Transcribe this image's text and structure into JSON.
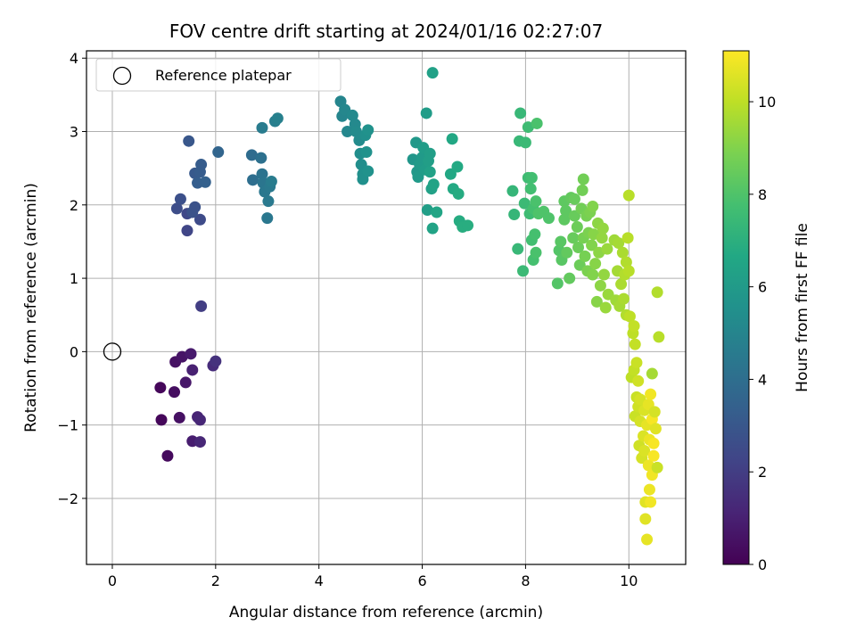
{
  "chart_data": {
    "type": "scatter",
    "title": "FOV centre drift starting at 2024/01/16 02:27:07",
    "xlabel": "Angular distance from reference (arcmin)",
    "ylabel": "Rotation from reference (arcmin)",
    "xlim": [
      -0.5,
      11.1
    ],
    "ylim": [
      -2.9,
      4.1
    ],
    "xticks": [
      0,
      2,
      4,
      6,
      8,
      10
    ],
    "yticks": [
      -2,
      -1,
      0,
      1,
      2,
      3,
      4
    ],
    "grid": true,
    "legend": {
      "placement": "top-left",
      "entries": [
        {
          "label": "Reference platepar",
          "marker": "open-circle"
        }
      ]
    },
    "reference_point": {
      "x": 0,
      "y": 0
    },
    "colorbar": {
      "label": "Hours from first FF file",
      "colormap": "viridis",
      "range": [
        0,
        11.1
      ],
      "ticks": [
        0,
        2,
        4,
        6,
        8,
        10
      ]
    },
    "points": [
      {
        "x": 0.93,
        "y": -0.49,
        "c": 0.2
      },
      {
        "x": 0.95,
        "y": -0.93,
        "c": 0.2
      },
      {
        "x": 1.07,
        "y": -1.42,
        "c": 0.3
      },
      {
        "x": 1.2,
        "y": -0.55,
        "c": 0.4
      },
      {
        "x": 1.22,
        "y": -0.14,
        "c": 0.5
      },
      {
        "x": 1.3,
        "y": -0.9,
        "c": 0.5
      },
      {
        "x": 1.35,
        "y": -0.07,
        "c": 0.6
      },
      {
        "x": 1.42,
        "y": -0.42,
        "c": 0.7
      },
      {
        "x": 1.52,
        "y": -0.03,
        "c": 0.8
      },
      {
        "x": 1.55,
        "y": -1.22,
        "c": 0.9
      },
      {
        "x": 1.55,
        "y": -0.25,
        "c": 1.0
      },
      {
        "x": 1.65,
        "y": -0.89,
        "c": 1.1
      },
      {
        "x": 1.7,
        "y": -0.93,
        "c": 1.2
      },
      {
        "x": 1.7,
        "y": -1.23,
        "c": 1.2
      },
      {
        "x": 1.95,
        "y": -0.19,
        "c": 1.4
      },
      {
        "x": 2.0,
        "y": -0.13,
        "c": 1.6
      },
      {
        "x": 1.72,
        "y": 0.62,
        "c": 2.0
      },
      {
        "x": 1.45,
        "y": 1.65,
        "c": 2.3
      },
      {
        "x": 1.45,
        "y": 1.88,
        "c": 2.4
      },
      {
        "x": 1.7,
        "y": 1.8,
        "c": 2.5
      },
      {
        "x": 1.25,
        "y": 1.95,
        "c": 2.6
      },
      {
        "x": 1.32,
        "y": 2.08,
        "c": 2.7
      },
      {
        "x": 1.55,
        "y": 1.9,
        "c": 2.8
      },
      {
        "x": 1.6,
        "y": 1.97,
        "c": 2.8
      },
      {
        "x": 1.48,
        "y": 2.87,
        "c": 3.0
      },
      {
        "x": 1.6,
        "y": 2.43,
        "c": 3.1
      },
      {
        "x": 1.7,
        "y": 2.45,
        "c": 3.2
      },
      {
        "x": 1.72,
        "y": 2.55,
        "c": 3.2
      },
      {
        "x": 1.65,
        "y": 2.3,
        "c": 3.3
      },
      {
        "x": 1.8,
        "y": 2.31,
        "c": 3.4
      },
      {
        "x": 2.05,
        "y": 2.72,
        "c": 3.6
      },
      {
        "x": 2.7,
        "y": 2.68,
        "c": 3.9
      },
      {
        "x": 2.72,
        "y": 2.34,
        "c": 4.0
      },
      {
        "x": 2.88,
        "y": 2.64,
        "c": 4.1
      },
      {
        "x": 2.9,
        "y": 2.42,
        "c": 4.2
      },
      {
        "x": 2.92,
        "y": 2.3,
        "c": 4.3
      },
      {
        "x": 2.95,
        "y": 2.18,
        "c": 4.4
      },
      {
        "x": 3.0,
        "y": 1.82,
        "c": 4.4
      },
      {
        "x": 3.02,
        "y": 2.05,
        "c": 4.5
      },
      {
        "x": 3.05,
        "y": 2.25,
        "c": 4.5
      },
      {
        "x": 3.08,
        "y": 2.32,
        "c": 4.6
      },
      {
        "x": 2.9,
        "y": 3.05,
        "c": 4.6
      },
      {
        "x": 3.15,
        "y": 3.14,
        "c": 4.7
      },
      {
        "x": 3.2,
        "y": 3.18,
        "c": 4.8
      },
      {
        "x": 4.42,
        "y": 3.41,
        "c": 5.0
      },
      {
        "x": 4.45,
        "y": 3.21,
        "c": 5.0
      },
      {
        "x": 4.5,
        "y": 3.3,
        "c": 5.1
      },
      {
        "x": 4.55,
        "y": 3.0,
        "c": 5.1
      },
      {
        "x": 4.65,
        "y": 3.22,
        "c": 5.2
      },
      {
        "x": 4.7,
        "y": 3.1,
        "c": 5.2
      },
      {
        "x": 4.72,
        "y": 3.0,
        "c": 5.3
      },
      {
        "x": 4.78,
        "y": 2.88,
        "c": 5.3
      },
      {
        "x": 4.8,
        "y": 2.7,
        "c": 5.4
      },
      {
        "x": 4.82,
        "y": 2.55,
        "c": 5.4
      },
      {
        "x": 4.85,
        "y": 2.42,
        "c": 5.5
      },
      {
        "x": 4.85,
        "y": 2.35,
        "c": 5.5
      },
      {
        "x": 4.9,
        "y": 2.95,
        "c": 5.5
      },
      {
        "x": 4.92,
        "y": 2.72,
        "c": 5.6
      },
      {
        "x": 4.95,
        "y": 3.02,
        "c": 5.6
      },
      {
        "x": 4.95,
        "y": 2.46,
        "c": 5.6
      },
      {
        "x": 5.82,
        "y": 2.62,
        "c": 5.8
      },
      {
        "x": 5.88,
        "y": 2.85,
        "c": 5.9
      },
      {
        "x": 5.9,
        "y": 2.45,
        "c": 5.9
      },
      {
        "x": 5.92,
        "y": 2.38,
        "c": 6.0
      },
      {
        "x": 5.95,
        "y": 2.55,
        "c": 6.0
      },
      {
        "x": 6.0,
        "y": 2.65,
        "c": 6.0
      },
      {
        "x": 6.02,
        "y": 2.78,
        "c": 6.1
      },
      {
        "x": 6.05,
        "y": 2.48,
        "c": 6.1
      },
      {
        "x": 6.08,
        "y": 3.25,
        "c": 6.1
      },
      {
        "x": 6.1,
        "y": 1.93,
        "c": 6.2
      },
      {
        "x": 6.12,
        "y": 2.6,
        "c": 6.2
      },
      {
        "x": 6.15,
        "y": 2.7,
        "c": 6.2
      },
      {
        "x": 6.15,
        "y": 2.45,
        "c": 6.3
      },
      {
        "x": 6.18,
        "y": 2.22,
        "c": 6.3
      },
      {
        "x": 6.2,
        "y": 3.8,
        "c": 6.3
      },
      {
        "x": 6.2,
        "y": 1.68,
        "c": 6.4
      },
      {
        "x": 6.22,
        "y": 2.28,
        "c": 6.4
      },
      {
        "x": 6.28,
        "y": 1.9,
        "c": 6.5
      },
      {
        "x": 6.55,
        "y": 2.42,
        "c": 6.6
      },
      {
        "x": 6.58,
        "y": 2.9,
        "c": 6.6
      },
      {
        "x": 6.6,
        "y": 2.22,
        "c": 6.7
      },
      {
        "x": 6.68,
        "y": 2.52,
        "c": 6.7
      },
      {
        "x": 6.7,
        "y": 2.15,
        "c": 6.8
      },
      {
        "x": 6.72,
        "y": 1.78,
        "c": 6.8
      },
      {
        "x": 6.78,
        "y": 1.7,
        "c": 6.9
      },
      {
        "x": 6.88,
        "y": 1.72,
        "c": 6.9
      },
      {
        "x": 7.75,
        "y": 2.19,
        "c": 7.3
      },
      {
        "x": 7.78,
        "y": 1.87,
        "c": 7.3
      },
      {
        "x": 7.85,
        "y": 1.4,
        "c": 7.4
      },
      {
        "x": 7.88,
        "y": 2.87,
        "c": 7.4
      },
      {
        "x": 7.9,
        "y": 3.25,
        "c": 7.4
      },
      {
        "x": 7.95,
        "y": 1.1,
        "c": 7.5
      },
      {
        "x": 7.98,
        "y": 2.02,
        "c": 7.5
      },
      {
        "x": 8.0,
        "y": 2.85,
        "c": 7.5
      },
      {
        "x": 8.05,
        "y": 3.06,
        "c": 7.6
      },
      {
        "x": 8.05,
        "y": 2.37,
        "c": 7.6
      },
      {
        "x": 8.08,
        "y": 1.88,
        "c": 7.6
      },
      {
        "x": 8.1,
        "y": 2.22,
        "c": 7.7
      },
      {
        "x": 8.12,
        "y": 1.52,
        "c": 7.7
      },
      {
        "x": 8.12,
        "y": 2.37,
        "c": 7.7
      },
      {
        "x": 8.15,
        "y": 1.95,
        "c": 7.8
      },
      {
        "x": 8.15,
        "y": 1.25,
        "c": 7.8
      },
      {
        "x": 8.18,
        "y": 1.6,
        "c": 7.8
      },
      {
        "x": 8.2,
        "y": 1.35,
        "c": 7.9
      },
      {
        "x": 8.2,
        "y": 2.05,
        "c": 7.9
      },
      {
        "x": 8.22,
        "y": 3.11,
        "c": 7.9
      },
      {
        "x": 8.25,
        "y": 1.88,
        "c": 8.0
      },
      {
        "x": 8.35,
        "y": 1.91,
        "c": 8.0
      },
      {
        "x": 8.45,
        "y": 1.82,
        "c": 8.0
      },
      {
        "x": 8.62,
        "y": 0.93,
        "c": 8.1
      },
      {
        "x": 8.65,
        "y": 1.38,
        "c": 8.1
      },
      {
        "x": 8.68,
        "y": 1.5,
        "c": 8.2
      },
      {
        "x": 8.7,
        "y": 1.25,
        "c": 8.2
      },
      {
        "x": 8.75,
        "y": 1.8,
        "c": 8.3
      },
      {
        "x": 8.75,
        "y": 2.05,
        "c": 8.3
      },
      {
        "x": 8.78,
        "y": 1.92,
        "c": 8.3
      },
      {
        "x": 8.8,
        "y": 1.35,
        "c": 8.4
      },
      {
        "x": 8.85,
        "y": 1.0,
        "c": 8.4
      },
      {
        "x": 8.88,
        "y": 2.1,
        "c": 8.4
      },
      {
        "x": 8.92,
        "y": 1.55,
        "c": 8.5
      },
      {
        "x": 8.95,
        "y": 1.85,
        "c": 8.5
      },
      {
        "x": 8.95,
        "y": 2.08,
        "c": 8.5
      },
      {
        "x": 9.0,
        "y": 1.7,
        "c": 8.6
      },
      {
        "x": 9.02,
        "y": 1.42,
        "c": 8.6
      },
      {
        "x": 9.05,
        "y": 1.18,
        "c": 8.6
      },
      {
        "x": 9.08,
        "y": 1.95,
        "c": 8.7
      },
      {
        "x": 9.1,
        "y": 2.2,
        "c": 8.7
      },
      {
        "x": 9.12,
        "y": 2.35,
        "c": 8.7
      },
      {
        "x": 9.12,
        "y": 1.55,
        "c": 8.8
      },
      {
        "x": 9.15,
        "y": 1.3,
        "c": 8.8
      },
      {
        "x": 9.18,
        "y": 1.85,
        "c": 8.8
      },
      {
        "x": 9.2,
        "y": 1.1,
        "c": 8.9
      },
      {
        "x": 9.22,
        "y": 1.62,
        "c": 8.9
      },
      {
        "x": 9.25,
        "y": 1.9,
        "c": 8.9
      },
      {
        "x": 9.28,
        "y": 1.45,
        "c": 9.0
      },
      {
        "x": 9.3,
        "y": 1.05,
        "c": 9.0
      },
      {
        "x": 9.3,
        "y": 1.98,
        "c": 9.0
      },
      {
        "x": 9.32,
        "y": 1.6,
        "c": 9.1
      },
      {
        "x": 9.35,
        "y": 1.2,
        "c": 9.1
      },
      {
        "x": 9.38,
        "y": 0.68,
        "c": 9.1
      },
      {
        "x": 9.4,
        "y": 1.75,
        "c": 9.2
      },
      {
        "x": 9.42,
        "y": 1.35,
        "c": 9.2
      },
      {
        "x": 9.45,
        "y": 0.9,
        "c": 9.2
      },
      {
        "x": 9.48,
        "y": 1.55,
        "c": 9.3
      },
      {
        "x": 9.5,
        "y": 1.68,
        "c": 9.3
      },
      {
        "x": 9.52,
        "y": 1.05,
        "c": 9.3
      },
      {
        "x": 9.55,
        "y": 0.6,
        "c": 9.4
      },
      {
        "x": 9.58,
        "y": 1.4,
        "c": 9.4
      },
      {
        "x": 9.6,
        "y": 0.78,
        "c": 9.4
      },
      {
        "x": 9.72,
        "y": 1.52,
        "c": 9.5
      },
      {
        "x": 9.75,
        "y": 0.7,
        "c": 9.5
      },
      {
        "x": 9.78,
        "y": 1.1,
        "c": 9.6
      },
      {
        "x": 9.8,
        "y": 1.48,
        "c": 9.6
      },
      {
        "x": 9.82,
        "y": 0.62,
        "c": 9.6
      },
      {
        "x": 9.85,
        "y": 0.92,
        "c": 9.7
      },
      {
        "x": 9.88,
        "y": 1.35,
        "c": 9.7
      },
      {
        "x": 9.9,
        "y": 0.72,
        "c": 9.7
      },
      {
        "x": 9.92,
        "y": 1.05,
        "c": 9.8
      },
      {
        "x": 9.95,
        "y": 0.5,
        "c": 9.8
      },
      {
        "x": 9.95,
        "y": 1.22,
        "c": 9.8
      },
      {
        "x": 9.98,
        "y": 1.55,
        "c": 9.9
      },
      {
        "x": 10.0,
        "y": 1.1,
        "c": 9.9
      },
      {
        "x": 10.0,
        "y": 2.13,
        "c": 9.9
      },
      {
        "x": 10.02,
        "y": 0.48,
        "c": 10.0
      },
      {
        "x": 10.05,
        "y": -0.35,
        "c": 10.0
      },
      {
        "x": 10.08,
        "y": 0.25,
        "c": 10.0
      },
      {
        "x": 10.1,
        "y": 0.35,
        "c": 10.1
      },
      {
        "x": 10.1,
        "y": -0.25,
        "c": 10.1
      },
      {
        "x": 10.12,
        "y": 0.1,
        "c": 10.1
      },
      {
        "x": 10.12,
        "y": -0.88,
        "c": 10.2
      },
      {
        "x": 10.15,
        "y": -0.15,
        "c": 10.2
      },
      {
        "x": 10.15,
        "y": -0.62,
        "c": 10.2
      },
      {
        "x": 10.18,
        "y": -0.4,
        "c": 10.3
      },
      {
        "x": 10.18,
        "y": -0.75,
        "c": 10.3
      },
      {
        "x": 10.2,
        "y": -1.28,
        "c": 10.3
      },
      {
        "x": 10.22,
        "y": -0.95,
        "c": 10.4
      },
      {
        "x": 10.22,
        "y": -0.65,
        "c": 10.4
      },
      {
        "x": 10.25,
        "y": -1.45,
        "c": 10.4
      },
      {
        "x": 10.28,
        "y": -1.15,
        "c": 10.5
      },
      {
        "x": 10.3,
        "y": -0.8,
        "c": 10.5
      },
      {
        "x": 10.3,
        "y": -1.35,
        "c": 10.5
      },
      {
        "x": 10.32,
        "y": -2.05,
        "c": 10.6
      },
      {
        "x": 10.32,
        "y": -2.28,
        "c": 10.6
      },
      {
        "x": 10.35,
        "y": -2.56,
        "c": 10.7
      },
      {
        "x": 10.35,
        "y": -1.0,
        "c": 10.7
      },
      {
        "x": 10.38,
        "y": -0.72,
        "c": 10.7
      },
      {
        "x": 10.38,
        "y": -1.55,
        "c": 10.8
      },
      {
        "x": 10.4,
        "y": -1.88,
        "c": 10.8
      },
      {
        "x": 10.4,
        "y": -1.2,
        "c": 10.8
      },
      {
        "x": 10.42,
        "y": -2.05,
        "c": 10.9
      },
      {
        "x": 10.42,
        "y": -0.58,
        "c": 10.9
      },
      {
        "x": 10.45,
        "y": -1.68,
        "c": 10.9
      },
      {
        "x": 10.45,
        "y": -0.92,
        "c": 11.0
      },
      {
        "x": 10.45,
        "y": -0.3,
        "c": 9.6
      },
      {
        "x": 10.48,
        "y": -1.42,
        "c": 11.0
      },
      {
        "x": 10.48,
        "y": -1.25,
        "c": 11.0
      },
      {
        "x": 10.5,
        "y": -0.82,
        "c": 10.4
      },
      {
        "x": 10.52,
        "y": -1.05,
        "c": 10.6
      },
      {
        "x": 10.55,
        "y": -1.58,
        "c": 10.2
      },
      {
        "x": 10.55,
        "y": 0.81,
        "c": 9.8
      },
      {
        "x": 10.58,
        "y": 0.2,
        "c": 9.9
      }
    ]
  }
}
